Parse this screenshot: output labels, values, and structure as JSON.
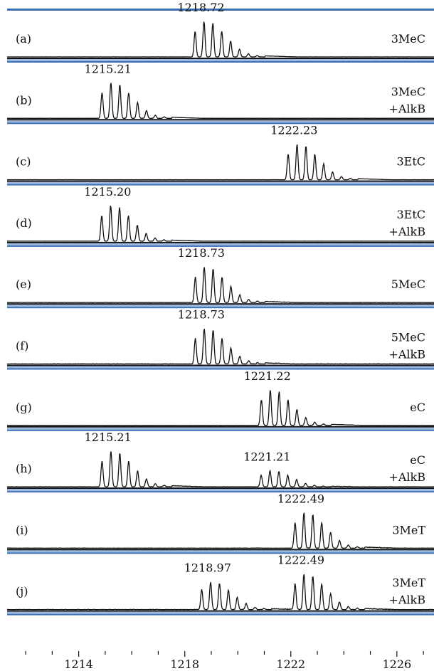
{
  "chart_data": {
    "type": "line",
    "title": "",
    "xlabel": "",
    "ylabel": "",
    "xlim": [
      1211.3,
      1227.4
    ],
    "x_ticks": [
      1214,
      1218,
      1222,
      1226
    ],
    "grid": false,
    "legend": "none",
    "panels": [
      {
        "letter": "(a)",
        "label": [
          "3MeC"
        ],
        "peaks": [
          {
            "mz": 1218.72,
            "label": "1218.72",
            "rel": 1.0
          }
        ],
        "noise": 0.02
      },
      {
        "letter": "(b)",
        "label": [
          "3MeC",
          "+AlkB"
        ],
        "peaks": [
          {
            "mz": 1215.21,
            "label": "1215.21",
            "rel": 1.0
          }
        ],
        "noise": 0.02
      },
      {
        "letter": "(c)",
        "label": [
          "3EtC"
        ],
        "peaks": [
          {
            "mz": 1222.23,
            "label": "1222.23",
            "rel": 1.0
          }
        ],
        "noise": 0.02
      },
      {
        "letter": "(d)",
        "label": [
          "3EtC",
          "+AlkB"
        ],
        "peaks": [
          {
            "mz": 1215.2,
            "label": "1215.20",
            "rel": 1.0
          }
        ],
        "noise": 0.02
      },
      {
        "letter": "(e)",
        "label": [
          "5MeC"
        ],
        "peaks": [
          {
            "mz": 1218.73,
            "label": "1218.73",
            "rel": 1.0
          }
        ],
        "noise": 0.06
      },
      {
        "letter": "(f)",
        "label": [
          "5MeC",
          "+AlkB"
        ],
        "peaks": [
          {
            "mz": 1218.73,
            "label": "1218.73",
            "rel": 1.0
          }
        ],
        "noise": 0.06
      },
      {
        "letter": "(g)",
        "label": [
          "eC"
        ],
        "peaks": [
          {
            "mz": 1221.22,
            "label": "1221.22",
            "rel": 1.0
          }
        ],
        "noise": 0.03
      },
      {
        "letter": "(h)",
        "label": [
          "eC",
          "+AlkB"
        ],
        "peaks": [
          {
            "mz": 1215.21,
            "label": "1215.21",
            "rel": 1.0
          },
          {
            "mz": 1221.21,
            "label": "1221.21",
            "rel": 0.45
          }
        ],
        "noise": 0.05
      },
      {
        "letter": "(i)",
        "label": [
          "3MeT"
        ],
        "peaks": [
          {
            "mz": 1222.49,
            "label": "1222.49",
            "rel": 1.0
          }
        ],
        "noise": 0.06
      },
      {
        "letter": "(j)",
        "label": [
          "3MeT",
          "+AlkB"
        ],
        "peaks": [
          {
            "mz": 1218.97,
            "label": "1218.97",
            "rel": 0.78
          },
          {
            "mz": 1222.49,
            "label": "1222.49",
            "rel": 1.0
          }
        ],
        "noise": 0.07
      }
    ]
  },
  "colors": {
    "divider_blue": "#3b6fb5",
    "divider_light": "#9bb8dc",
    "trace": "#111111",
    "text": "#111111"
  }
}
